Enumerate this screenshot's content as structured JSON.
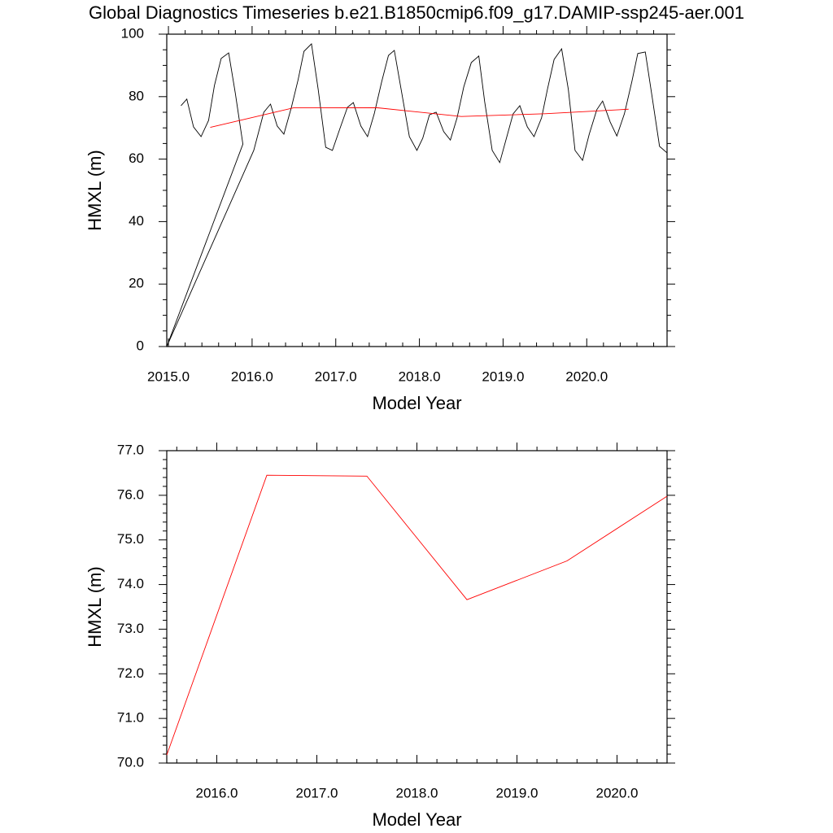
{
  "chart_data": [
    {
      "type": "line",
      "title": "Global Diagnostics Timeseries b.e21.B1850cmip6.f09_g17.DAMIP-ssp245-aer.001",
      "xlabel": "Model Year",
      "ylabel": "HMXL (m)",
      "xlim": [
        2014.98,
        2020.96
      ],
      "ylim": [
        0,
        100
      ],
      "xticks": [
        {
          "value": 2015,
          "label": "2015.0"
        },
        {
          "value": 2016,
          "label": "2016.0"
        },
        {
          "value": 2017,
          "label": "2017.0"
        },
        {
          "value": 2018,
          "label": "2018.0"
        },
        {
          "value": 2019,
          "label": "2019.0"
        },
        {
          "value": 2020,
          "label": "2020.0"
        }
      ],
      "yticks": [
        0,
        20,
        40,
        60,
        80,
        100
      ],
      "xminorticks": [
        2015.2,
        2015.4,
        2015.6,
        2015.8,
        2016.2,
        2016.4,
        2016.6,
        2016.8,
        2017.2,
        2017.4,
        2017.6,
        2017.8,
        2018.2,
        2018.4,
        2018.6,
        2018.8,
        2019.2,
        2019.4,
        2019.6,
        2019.8,
        2020.2,
        2020.4,
        2020.6,
        2020.8
      ],
      "yminorticks": [
        5,
        10,
        15,
        25,
        30,
        35,
        45,
        50,
        55,
        65,
        70,
        75,
        85,
        90,
        95
      ],
      "series": [
        {
          "color": "#000000",
          "x": [
            2015.15,
            2015.22,
            2015.3,
            2015.39,
            2015.48,
            2015.55,
            2015.63,
            2015.72,
            2015.8,
            2015.89,
            2014.98,
            2016.02,
            2016.14,
            2016.22,
            2016.3,
            2016.38,
            2016.47,
            2016.55,
            2016.62,
            2016.71,
            2016.79,
            2016.88,
            2016.96,
            2017.05,
            2017.14,
            2017.21,
            2017.3,
            2017.38,
            2017.46,
            2017.55,
            2017.63,
            2017.7,
            2017.79,
            2017.88,
            2017.97,
            2018.04,
            2018.12,
            2018.2,
            2018.29,
            2018.37,
            2018.45,
            2018.53,
            2018.62,
            2018.71,
            2018.78,
            2018.87,
            2018.96,
            2019.04,
            2019.12,
            2019.2,
            2019.29,
            2019.37,
            2019.46,
            2019.53,
            2019.61,
            2019.7,
            2019.78,
            2019.86,
            2019.95,
            2020.03,
            2020.12,
            2020.19,
            2020.28,
            2020.36,
            2020.45,
            2020.54,
            2020.61,
            2020.7,
            2020.78,
            2020.87,
            2020.96
          ],
          "values": [
            77.1,
            79.2,
            70.3,
            67.2,
            72.4,
            83.6,
            92.2,
            94.0,
            81.0,
            64.8,
            0,
            62.8,
            75.0,
            77.6,
            70.6,
            68.0,
            76.6,
            85.4,
            94.5,
            96.9,
            82.3,
            63.8,
            62.8,
            69.8,
            76.6,
            78.1,
            70.6,
            67.2,
            74.5,
            84.9,
            93.2,
            94.8,
            81.0,
            67.2,
            62.8,
            66.7,
            74.2,
            75.0,
            68.8,
            66.1,
            73.2,
            83.1,
            90.9,
            93.0,
            78.4,
            62.8,
            58.9,
            66.7,
            74.5,
            77.1,
            70.3,
            67.2,
            73.2,
            82.3,
            91.9,
            95.3,
            82.3,
            62.8,
            59.6,
            68.0,
            75.8,
            78.6,
            71.9,
            67.4,
            74.5,
            84.9,
            93.8,
            94.3,
            80.2,
            64.1,
            62.0
          ]
        },
        {
          "color": "#ff0000",
          "x": [
            2015.5,
            2016.5,
            2017.5,
            2018.5,
            2019.5,
            2020.5
          ],
          "values": [
            70.18,
            76.45,
            76.43,
            73.66,
            74.53,
            75.98
          ]
        }
      ]
    },
    {
      "type": "line",
      "xlabel": "Model Year",
      "ylabel": "HMXL (m)",
      "xlim": [
        2015.5,
        2020.5
      ],
      "ylim": [
        70,
        77
      ],
      "xticks": [
        {
          "value": 2016,
          "label": "2016.0"
        },
        {
          "value": 2017,
          "label": "2017.0"
        },
        {
          "value": 2018,
          "label": "2018.0"
        },
        {
          "value": 2019,
          "label": "2019.0"
        },
        {
          "value": 2020,
          "label": "2020.0"
        }
      ],
      "yticks": [
        {
          "value": 70,
          "label": "70.0"
        },
        {
          "value": 71,
          "label": "71.0"
        },
        {
          "value": 72,
          "label": "72.0"
        },
        {
          "value": 73,
          "label": "73.0"
        },
        {
          "value": 74,
          "label": "74.0"
        },
        {
          "value": 75,
          "label": "75.0"
        },
        {
          "value": 76,
          "label": "76.0"
        },
        {
          "value": 77,
          "label": "77.0"
        }
      ],
      "xminorticks": [
        2015.6,
        2015.8,
        2016.2,
        2016.4,
        2016.6,
        2016.8,
        2017.2,
        2017.4,
        2017.6,
        2017.8,
        2018.2,
        2018.4,
        2018.6,
        2018.8,
        2019.2,
        2019.4,
        2019.6,
        2019.8,
        2020.2,
        2020.4
      ],
      "yminorticks": [
        70.2,
        70.4,
        70.6,
        70.8,
        71.2,
        71.4,
        71.6,
        71.8,
        72.2,
        72.4,
        72.6,
        72.8,
        73.2,
        73.4,
        73.6,
        73.8,
        74.2,
        74.4,
        74.6,
        74.8,
        75.2,
        75.4,
        75.6,
        75.8,
        76.2,
        76.4,
        76.6,
        76.8
      ],
      "series": [
        {
          "color": "#ff0000",
          "x": [
            2015.5,
            2016.5,
            2017.5,
            2018.5,
            2019.5,
            2020.5
          ],
          "values": [
            70.18,
            76.45,
            76.43,
            73.66,
            74.53,
            75.98
          ]
        }
      ]
    }
  ]
}
